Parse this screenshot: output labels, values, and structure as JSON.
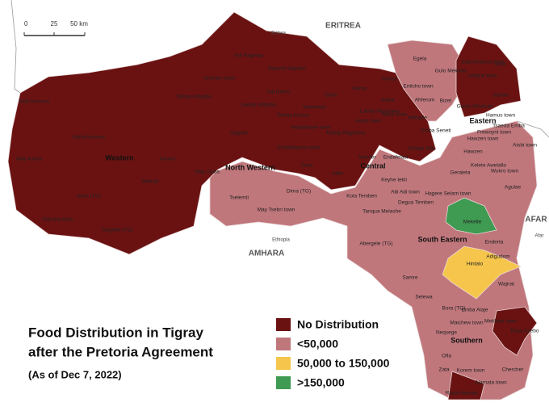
{
  "title_lines": [
    "Food Distribution in Tigray",
    "after the Pretoria Agreement"
  ],
  "subtitle": "(As of Dec 7, 2022)",
  "legend": [
    {
      "label": "No Distribution",
      "color": "#6a1212"
    },
    {
      "label": "<50,000",
      "color": "#c0777c"
    },
    {
      "label": "50,000 to 150,000",
      "color": "#f6c64c"
    },
    {
      "label": ">150,000",
      "color": "#3f9a52"
    }
  ],
  "scale_bar": [
    "0",
    "25",
    "50 km"
  ],
  "countries": [
    "ERITREA",
    "Eritrea",
    "AFAR",
    "Afar",
    "AMHARA",
    "Ethiopia"
  ],
  "zones": [
    "Western",
    "North Western",
    "Central",
    "Eastern",
    "South Eastern",
    "Southern"
  ],
  "woredas": [
    "Setit Humera",
    "Kafta Humera",
    "May Kadra",
    "Korarit",
    "Welkait",
    "Awra (TG)",
    "Dansha town",
    "Tsegede (TG)",
    "May Gaba",
    "Tselemti",
    "Dima (TG)",
    "May Tsebri town",
    "Adi Hageray",
    "Sheraro town",
    "Tahtay Adiyabo",
    "Sayemti Adyabo",
    "Adi Daero",
    "Laelay Adiyabo",
    "Tahtay Koraro",
    "Selekleka",
    "Asgede",
    "Indasilassie town",
    "Endabaguna town",
    "Zana",
    "Chila",
    "Rama",
    "Laelay Maychew",
    "Adwa",
    "Axum town",
    "Adwa town",
    "Tahtay Maychew",
    "Ahsea",
    "Naeder",
    "Adet",
    "Egela",
    "Enticho town",
    "Ahferom",
    "Bizet",
    "Hahayle",
    "Emba Seneti",
    "Edaga arbi",
    "Endafelasi",
    "Zala Ambesa town",
    "Erob",
    "Gulo Mekeda",
    "Adigrat town",
    "Saesie",
    "Ganta Afeshum",
    "Hamus town",
    "Hawzen town",
    "Tsaeda Emba",
    "Frewoyni town",
    "Atsbi town",
    "Hawzen",
    "Geraleta",
    "Kelete Awelallo",
    "Wukro town",
    "Agulae",
    "Keyhe tekli",
    "Kola Temben",
    "Abi Adi town",
    "Hagere Selam town",
    "Degua Temben",
    "Tanqua Melashe",
    "Abergele (TG)",
    "Mekelle",
    "Enderta",
    "Adigudom",
    "Hintalo",
    "Samre",
    "Wajirat",
    "Selewa",
    "Bora (TG)",
    "Emba Alaje",
    "Maichew town",
    "Mekhoni town",
    "Raya Azebo",
    "Neqsege",
    "Ofla",
    "Zata",
    "Korem town",
    "Chercher",
    "Alamata town",
    "Raya Alamata"
  ]
}
